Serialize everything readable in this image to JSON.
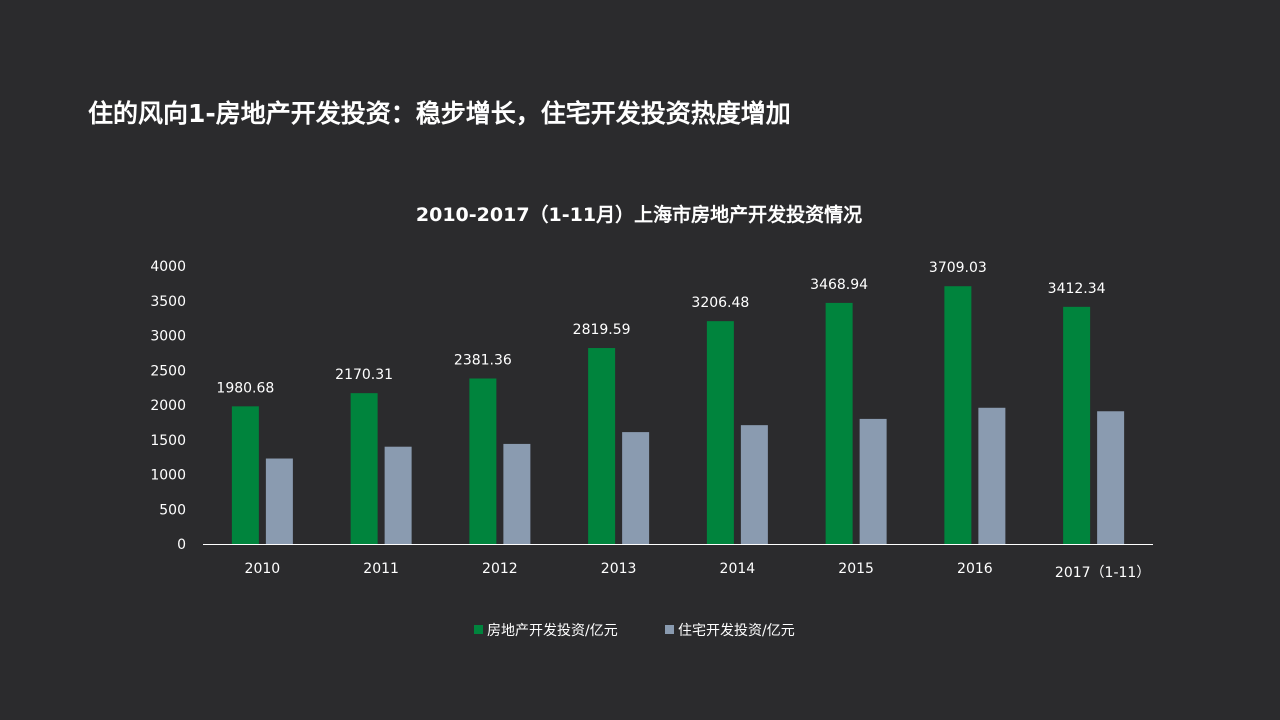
{
  "slide": {
    "title": "住的风向1-房地产开发投资：稳步增长，住宅开发投资热度增加"
  },
  "chart_data": {
    "type": "bar",
    "title": "2010-2017（1-11月）上海市房地产开发投资情况",
    "categories": [
      "2010",
      "2011",
      "2012",
      "2013",
      "2014",
      "2015",
      "2016",
      "2017（1-11）"
    ],
    "series": [
      {
        "name": "房地产开发投资/亿元",
        "color": "#00843d",
        "values": [
          1980.68,
          2170.31,
          2381.36,
          2819.59,
          3206.48,
          3468.94,
          3709.03,
          3412.34
        ],
        "labels": [
          "1980.68",
          "2170.31",
          "2381.36",
          "2819.59",
          "3206.48",
          "3468.94",
          "3709.03",
          "3412.34"
        ]
      },
      {
        "name": "住宅开发投资/亿元",
        "color": "#8a9bb0",
        "values": [
          1230,
          1400,
          1440,
          1610,
          1710,
          1800,
          1960,
          1910
        ]
      }
    ],
    "yticks": [
      "0",
      "500",
      "1000",
      "1500",
      "2000",
      "2500",
      "3000",
      "3500",
      "4000"
    ],
    "ylim": [
      0,
      4000
    ],
    "grid": false,
    "legend": "bottom-center"
  }
}
